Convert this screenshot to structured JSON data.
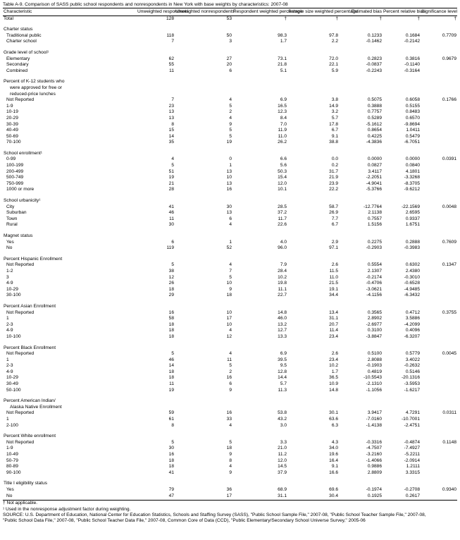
{
  "title": "Table A-9. Comparison of SASS public school respondents and nonrespondents in New York with base weights by characteristics: 2007-08",
  "header": [
    "Characteristic",
    "Unweighted respondents",
    "Unweighted nonrespondents",
    "Respondent weighted percentage",
    "Sample size weighted percentage",
    "Estimated bias",
    "Percent relative bias",
    "Significance level"
  ],
  "total": {
    "label": "Total",
    "values": [
      "128",
      "53",
      "†",
      "†",
      "†",
      "†",
      "†"
    ]
  },
  "groups": [
    {
      "label": [
        "Charter status"
      ],
      "rows": [
        {
          "label": "Traditional public",
          "values": [
            "118",
            "50",
            "98.3",
            "97.8",
            "0.1233",
            "0.1684",
            "0.7709"
          ]
        },
        {
          "label": "Charter school",
          "values": [
            "7",
            "3",
            "1.7",
            "2.2",
            "-0.1462",
            "-0.2142"
          ]
        }
      ]
    },
    {
      "label": [
        "Grade level of school¹"
      ],
      "rows": [
        {
          "label": "Elementary",
          "values": [
            "62",
            "27",
            "73.1",
            "72.0",
            "0.2823",
            "0.3816",
            "0.9679"
          ]
        },
        {
          "label": "Secondary",
          "values": [
            "55",
            "20",
            "21.8",
            "22.1",
            "-0.0837",
            "-0.1140"
          ]
        },
        {
          "label": "Combined",
          "values": [
            "11",
            "6",
            "5.1",
            "5.9",
            "-0.2243",
            "-0.3164"
          ]
        }
      ]
    },
    {
      "label": [
        "Percent of K-12 students who",
        "were approved for free or",
        "reduced-price lunches"
      ],
      "rows": [
        {
          "label": "Not Reported",
          "values": [
            "7",
            "4",
            "6.9",
            "3.8",
            "0.5075",
            "0.6058",
            "0.1766"
          ]
        },
        {
          "label": "1-9",
          "values": [
            "23",
            "5",
            "16.5",
            "14.9",
            "0.3888",
            "0.5155"
          ]
        },
        {
          "label": "10-19",
          "values": [
            "13",
            "2",
            "12.3",
            "3.2",
            "0.7757",
            "0.8483"
          ]
        },
        {
          "label": "20-29",
          "values": [
            "13",
            "4",
            "8.4",
            "5.7",
            "0.5289",
            "0.6570"
          ]
        },
        {
          "label": "30-39",
          "values": [
            "8",
            "9",
            "7.0",
            "17.8",
            "-5.1612",
            "-9.8694"
          ]
        },
        {
          "label": "40-49",
          "values": [
            "15",
            "5",
            "11.9",
            "6.7",
            "0.8654",
            "1.0411"
          ]
        },
        {
          "label": "50-69",
          "values": [
            "14",
            "5",
            "11.0",
            "9.1",
            "0.4225",
            "0.5479"
          ]
        },
        {
          "label": "70-100",
          "values": [
            "35",
            "19",
            "26.2",
            "38.8",
            "-4.3836",
            "-6.7051"
          ]
        }
      ]
    },
    {
      "label": [
        "School enrollment¹"
      ],
      "rows": [
        {
          "label": "0-99",
          "values": [
            "4",
            "0",
            "6.6",
            "0.0",
            "0.0000",
            "0.0000",
            "0.0391"
          ]
        },
        {
          "label": "100-199",
          "values": [
            "5",
            "1",
            "5.6",
            "0.2",
            "0.0827",
            "0.0840"
          ]
        },
        {
          "label": "200-499",
          "values": [
            "51",
            "13",
            "50.3",
            "31.7",
            "3.4117",
            "4.1801"
          ]
        },
        {
          "label": "500-749",
          "values": [
            "19",
            "10",
            "15.4",
            "21.9",
            "-2.2051",
            "-3.3268"
          ]
        },
        {
          "label": "750-999",
          "values": [
            "21",
            "13",
            "12.0",
            "23.9",
            "-4.9041",
            "-8.3705"
          ]
        },
        {
          "label": "1000 or more",
          "values": [
            "28",
            "16",
            "10.1",
            "22.2",
            "-5.3766",
            "-9.6212"
          ]
        }
      ]
    },
    {
      "label": [
        "School urbanicity¹"
      ],
      "rows": [
        {
          "label": "City",
          "values": [
            "41",
            "30",
            "28.5",
            "58.7",
            "-12.7764",
            "-22.1569",
            "0.0048"
          ]
        },
        {
          "label": "Suburban",
          "values": [
            "46",
            "13",
            "37.2",
            "26.9",
            "2.1138",
            "2.6595"
          ]
        },
        {
          "label": "Town",
          "values": [
            "11",
            "6",
            "11.7",
            "7.7",
            "0.7557",
            "0.9337"
          ]
        },
        {
          "label": "Rural",
          "values": [
            "30",
            "4",
            "22.6",
            "6.7",
            "1.5156",
            "1.6751"
          ]
        }
      ]
    },
    {
      "label": [
        "Magnet status"
      ],
      "rows": [
        {
          "label": "Yes",
          "values": [
            "6",
            "1",
            "4.0",
            "2.9",
            "0.2275",
            "0.2888",
            "0.7609"
          ]
        },
        {
          "label": "No",
          "values": [
            "119",
            "52",
            "96.0",
            "97.1",
            "-0.2903",
            "-0.3983"
          ]
        }
      ]
    },
    {
      "label": [
        "Percent Hispanic Enrollment"
      ],
      "rows": [
        {
          "label": "Not Reported",
          "values": [
            "5",
            "4",
            "7.9",
            "2.6",
            "0.5554",
            "0.6302",
            "0.1347"
          ]
        },
        {
          "label": "1-2",
          "values": [
            "38",
            "7",
            "28.4",
            "11.5",
            "2.1307",
            "2.4380"
          ]
        },
        {
          "label": "3",
          "values": [
            "12",
            "5",
            "10.2",
            "11.0",
            "-0.2174",
            "-0.3010"
          ]
        },
        {
          "label": "4-9",
          "values": [
            "26",
            "10",
            "19.8",
            "21.5",
            "-0.4706",
            "-0.6528"
          ]
        },
        {
          "label": "10-29",
          "values": [
            "18",
            "9",
            "11.1",
            "19.1",
            "-3.0621",
            "-4.9485"
          ]
        },
        {
          "label": "30-100",
          "values": [
            "29",
            "18",
            "22.7",
            "34.4",
            "-4.1156",
            "-6.3432"
          ]
        }
      ]
    },
    {
      "label": [
        "Percent Asian Enrollment"
      ],
      "rows": [
        {
          "label": "Not Reported",
          "values": [
            "16",
            "10",
            "14.8",
            "13.4",
            "0.3565",
            "0.4712",
            "0.3755"
          ]
        },
        {
          "label": "1",
          "values": [
            "58",
            "17",
            "46.0",
            "31.1",
            "2.8902",
            "3.5886"
          ]
        },
        {
          "label": "2-3",
          "values": [
            "18",
            "10",
            "13.2",
            "20.7",
            "-2.6977",
            "-4.2099"
          ]
        },
        {
          "label": "4-9",
          "values": [
            "18",
            "4",
            "12.7",
            "11.4",
            "0.3100",
            "0.4096"
          ]
        },
        {
          "label": "10-100",
          "values": [
            "18",
            "12",
            "13.3",
            "23.4",
            "-3.8847",
            "-6.3207"
          ]
        }
      ]
    },
    {
      "label": [
        "Percent Black Enrollment"
      ],
      "rows": [
        {
          "label": "Not Reported",
          "values": [
            "5",
            "4",
            "6.9",
            "2.6",
            "0.5100",
            "0.5779",
            "0.0045"
          ]
        },
        {
          "label": "1",
          "values": [
            "46",
            "11",
            "39.5",
            "23.4",
            "2.8088",
            "3.4022"
          ]
        },
        {
          "label": "2-3",
          "values": [
            "14",
            "5",
            "9.5",
            "10.2",
            "-0.1903",
            "-0.2632"
          ]
        },
        {
          "label": "4-9",
          "values": [
            "18",
            "2",
            "12.8",
            "1.7",
            "0.4819",
            "0.5146"
          ]
        },
        {
          "label": "10-29",
          "values": [
            "18",
            "16",
            "14.4",
            "36.5",
            "-10.5543",
            "-20.1316"
          ]
        },
        {
          "label": "30-49",
          "values": [
            "11",
            "6",
            "5.7",
            "10.9",
            "-2.1310",
            "-3.5953"
          ]
        },
        {
          "label": "50-100",
          "values": [
            "19",
            "9",
            "11.3",
            "14.8",
            "-1.1056",
            "-1.6217"
          ]
        }
      ]
    },
    {
      "label": [
        "Percent American Indian/",
        "Alaska Native Enrollment"
      ],
      "rows": [
        {
          "label": "Not Reported",
          "values": [
            "59",
            "16",
            "53.8",
            "30.1",
            "3.9417",
            "4.7291",
            "0.0311"
          ]
        },
        {
          "label": "1",
          "values": [
            "61",
            "33",
            "43.2",
            "63.6",
            "-7.0160",
            "-10.7001"
          ]
        },
        {
          "label": "2-100",
          "values": [
            "8",
            "4",
            "3.0",
            "6.3",
            "-1.4138",
            "-2.4751"
          ]
        }
      ]
    },
    {
      "label": [
        "Percent White enrollment"
      ],
      "rows": [
        {
          "label": "Not Reported",
          "values": [
            "5",
            "5",
            "3.3",
            "4.3",
            "-0.3316",
            "-0.4874",
            "0.1148"
          ]
        },
        {
          "label": "1-9",
          "values": [
            "30",
            "18",
            "21.0",
            "34.0",
            "-4.7507",
            "-7.4927"
          ]
        },
        {
          "label": "10-49",
          "values": [
            "16",
            "9",
            "11.2",
            "19.6",
            "-3.2160",
            "-5.2211"
          ]
        },
        {
          "label": "50-79",
          "values": [
            "18",
            "8",
            "12.0",
            "16.4",
            "-1.4066",
            "-2.0914"
          ]
        },
        {
          "label": "80-89",
          "values": [
            "18",
            "4",
            "14.5",
            "9.1",
            "0.9886",
            "1.2111"
          ]
        },
        {
          "label": "90-100",
          "values": [
            "41",
            "9",
            "37.9",
            "16.6",
            "2.8809",
            "3.3315"
          ]
        }
      ]
    },
    {
      "label": [
        "Title I eligibility status"
      ],
      "rows": [
        {
          "label": "Yes",
          "values": [
            "79",
            "36",
            "68.9",
            "69.6",
            "-0.1974",
            "-0.2708",
            "0.9340"
          ]
        },
        {
          "label": "No",
          "values": [
            "47",
            "17",
            "31.1",
            "30.4",
            "0.1925",
            "0.2617"
          ]
        }
      ]
    }
  ],
  "footnotes": [
    "† Not applicable.",
    "¹ Used in the nonresponse adjustment factor during weighting.",
    "SOURCE: U.S. Department of Education, National Center for Education Statistics, Schools and Staffing Survey (SASS), \"Public School Sample File,\" 2007-08, \"Public School Teacher Sample File,\" 2007-08, \"Public School Data File,\" 2007-08, \"Public School Teacher Data File,\" 2007-08, Common Core of Data (CCD), \"Public Elementary/Secondary School Universe Survey,\" 2005-06"
  ]
}
